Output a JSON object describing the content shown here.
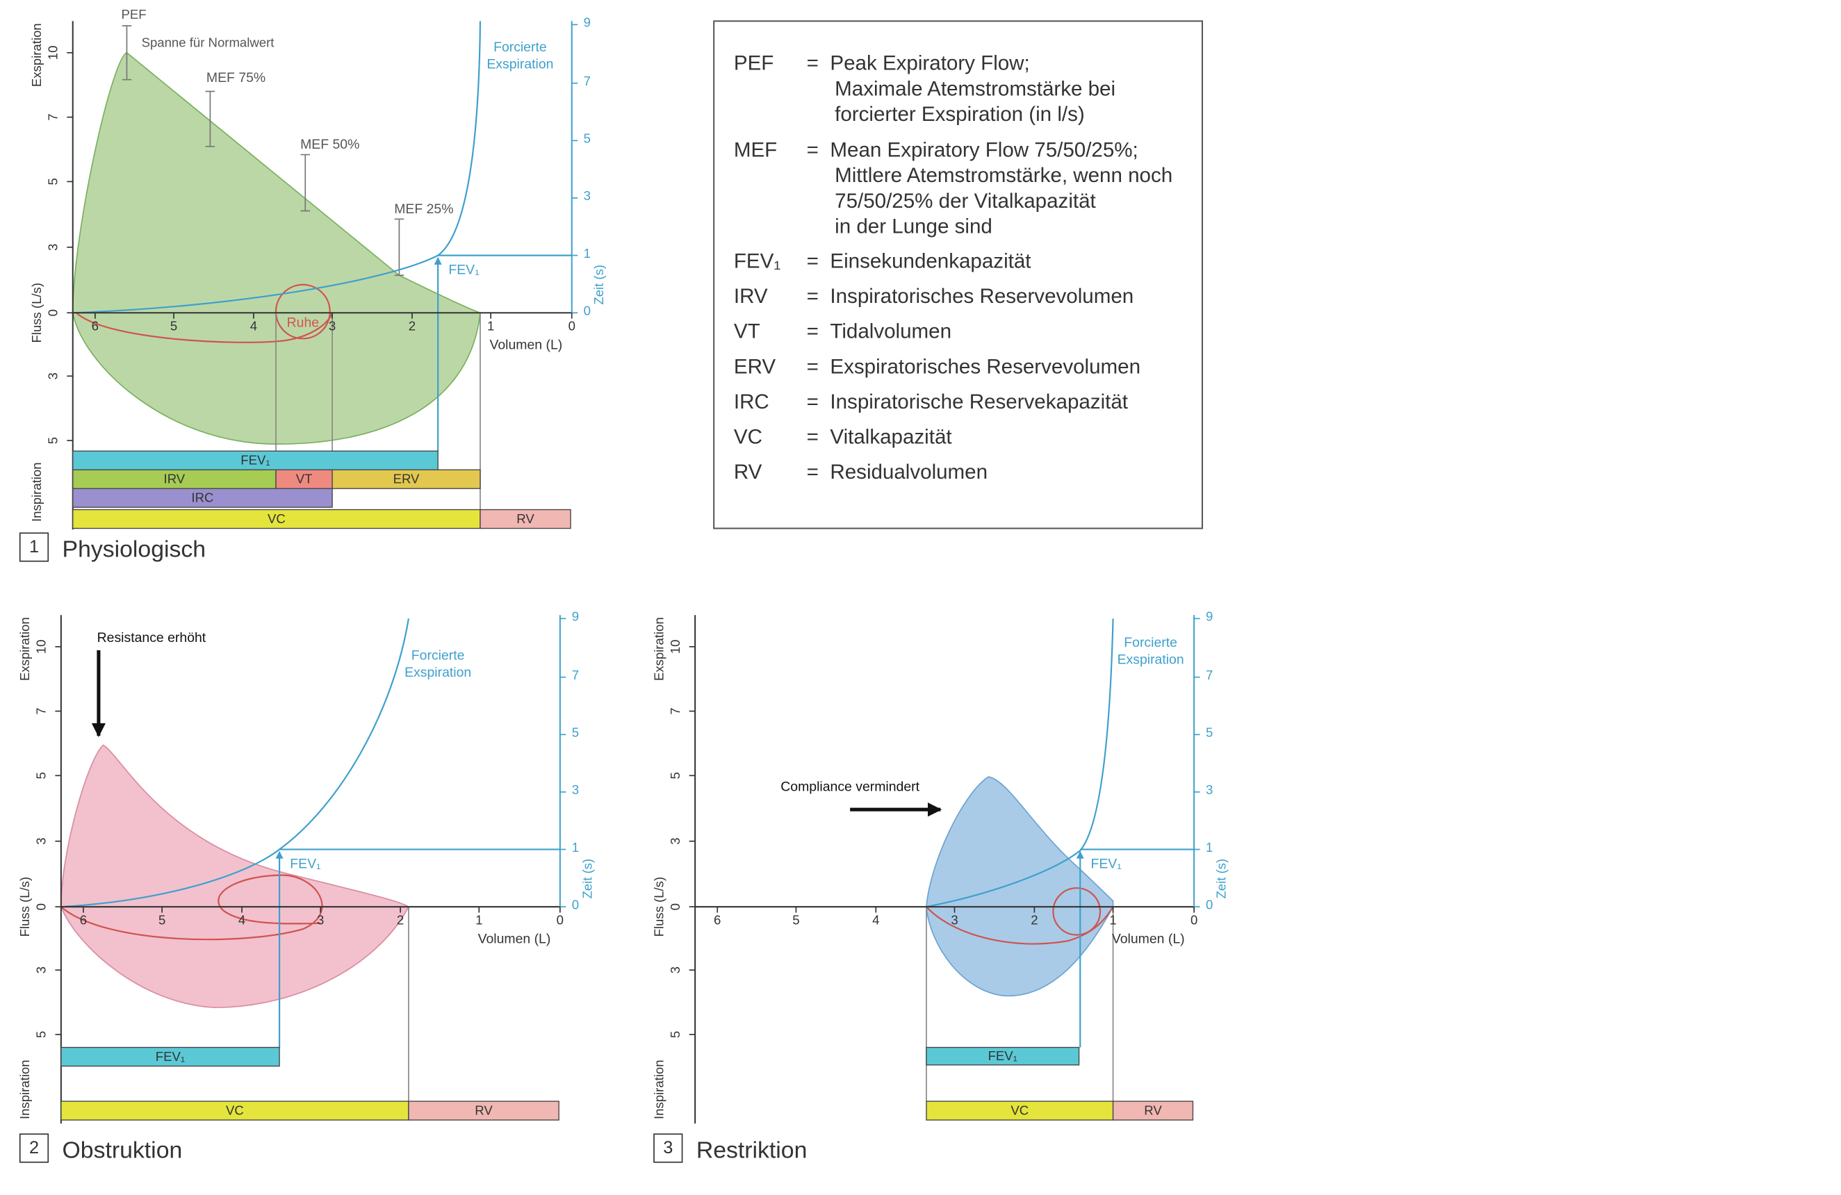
{
  "panels": [
    {
      "number": "1",
      "title": "Physiologisch",
      "exspiration_label": "Exspiration",
      "inspiration_label": "Inspiration",
      "flow_axis_label": "Fluss (L/s)",
      "time_axis_label": "Zeit (s)",
      "volume_axis_label": "Volumen (L)",
      "forced_label": [
        "Forcierte",
        "Exspiration"
      ],
      "flow_ticks": [
        "10",
        "7",
        "5",
        "3",
        "0",
        "3",
        "5"
      ],
      "time_ticks": [
        "9",
        "7",
        "5",
        "3",
        "1",
        "0"
      ],
      "volume_ticks": [
        "6",
        "5",
        "4",
        "3",
        "2",
        "1",
        "0"
      ],
      "fev1_marker": "FEV₁",
      "annotations": [
        "PEF",
        "Spanne für Normalwert",
        "MEF 75%",
        "MEF 50%",
        "MEF 25%",
        "Ruhe"
      ],
      "bars": [
        "FEV₁",
        "IRV",
        "VT",
        "ERV",
        "IRC",
        "VC",
        "RV"
      ]
    },
    {
      "number": "2",
      "title": "Obstruktion",
      "exspiration_label": "Exspiration",
      "inspiration_label": "Inspiration",
      "flow_axis_label": "Fluss (L/s)",
      "time_axis_label": "Zeit (s)",
      "volume_axis_label": "Volumen (L)",
      "forced_label": [
        "Forcierte",
        "Exspiration"
      ],
      "flow_ticks": [
        "10",
        "7",
        "5",
        "3",
        "0",
        "3",
        "5"
      ],
      "time_ticks": [
        "9",
        "7",
        "5",
        "3",
        "1",
        "0"
      ],
      "volume_ticks": [
        "6",
        "5",
        "4",
        "3",
        "2",
        "1",
        "0"
      ],
      "fev1_marker": "FEV₁",
      "annotations": [
        "Resistance erhöht"
      ],
      "bars": [
        "FEV₁",
        "VC",
        "RV"
      ]
    },
    {
      "number": "3",
      "title": "Restriktion",
      "exspiration_label": "Exspiration",
      "inspiration_label": "Inspiration",
      "flow_axis_label": "Fluss (L/s)",
      "time_axis_label": "Zeit (s)",
      "volume_axis_label": "Volumen (L)",
      "forced_label": [
        "Forcierte",
        "Exspiration"
      ],
      "flow_ticks": [
        "10",
        "7",
        "5",
        "3",
        "0",
        "3",
        "5"
      ],
      "time_ticks": [
        "9",
        "7",
        "5",
        "3",
        "1",
        "0"
      ],
      "volume_ticks": [
        "6",
        "5",
        "4",
        "3",
        "2",
        "1",
        "0"
      ],
      "fev1_marker": "FEV₁",
      "annotations": [
        "Compliance vermindert"
      ],
      "bars": [
        "FEV₁",
        "VC",
        "RV"
      ]
    }
  ],
  "legend": [
    {
      "term": "PEF",
      "equals": "=",
      "lines": [
        "Peak Expiratory Flow;",
        "Maximale Atemstromstärke bei",
        "forcierter Exspiration (in l/s)"
      ]
    },
    {
      "term": "MEF",
      "equals": "=",
      "lines": [
        "Mean Expiratory Flow 75/50/25%;",
        "Mittlere Atemstromstärke, wenn noch",
        "75/50/25% der Vitalkapazität",
        "in der Lunge sind"
      ]
    },
    {
      "term": "FEV₁",
      "equals": "=",
      "lines": [
        "Einsekundenkapazität"
      ]
    },
    {
      "term": "IRV",
      "equals": "=",
      "lines": [
        "Inspiratorisches Reservevolumen"
      ]
    },
    {
      "term": "VT",
      "equals": "=",
      "lines": [
        "Tidalvolumen"
      ]
    },
    {
      "term": "ERV",
      "equals": "=",
      "lines": [
        "Exspiratorisches Reservevolumen"
      ]
    },
    {
      "term": "IRC",
      "equals": "=",
      "lines": [
        "Inspiratorische Reservekapazität"
      ]
    },
    {
      "term": "VC",
      "equals": "=",
      "lines": [
        "Vitalkapazität"
      ]
    },
    {
      "term": "RV",
      "equals": "=",
      "lines": [
        "Residualvolumen"
      ]
    }
  ]
}
